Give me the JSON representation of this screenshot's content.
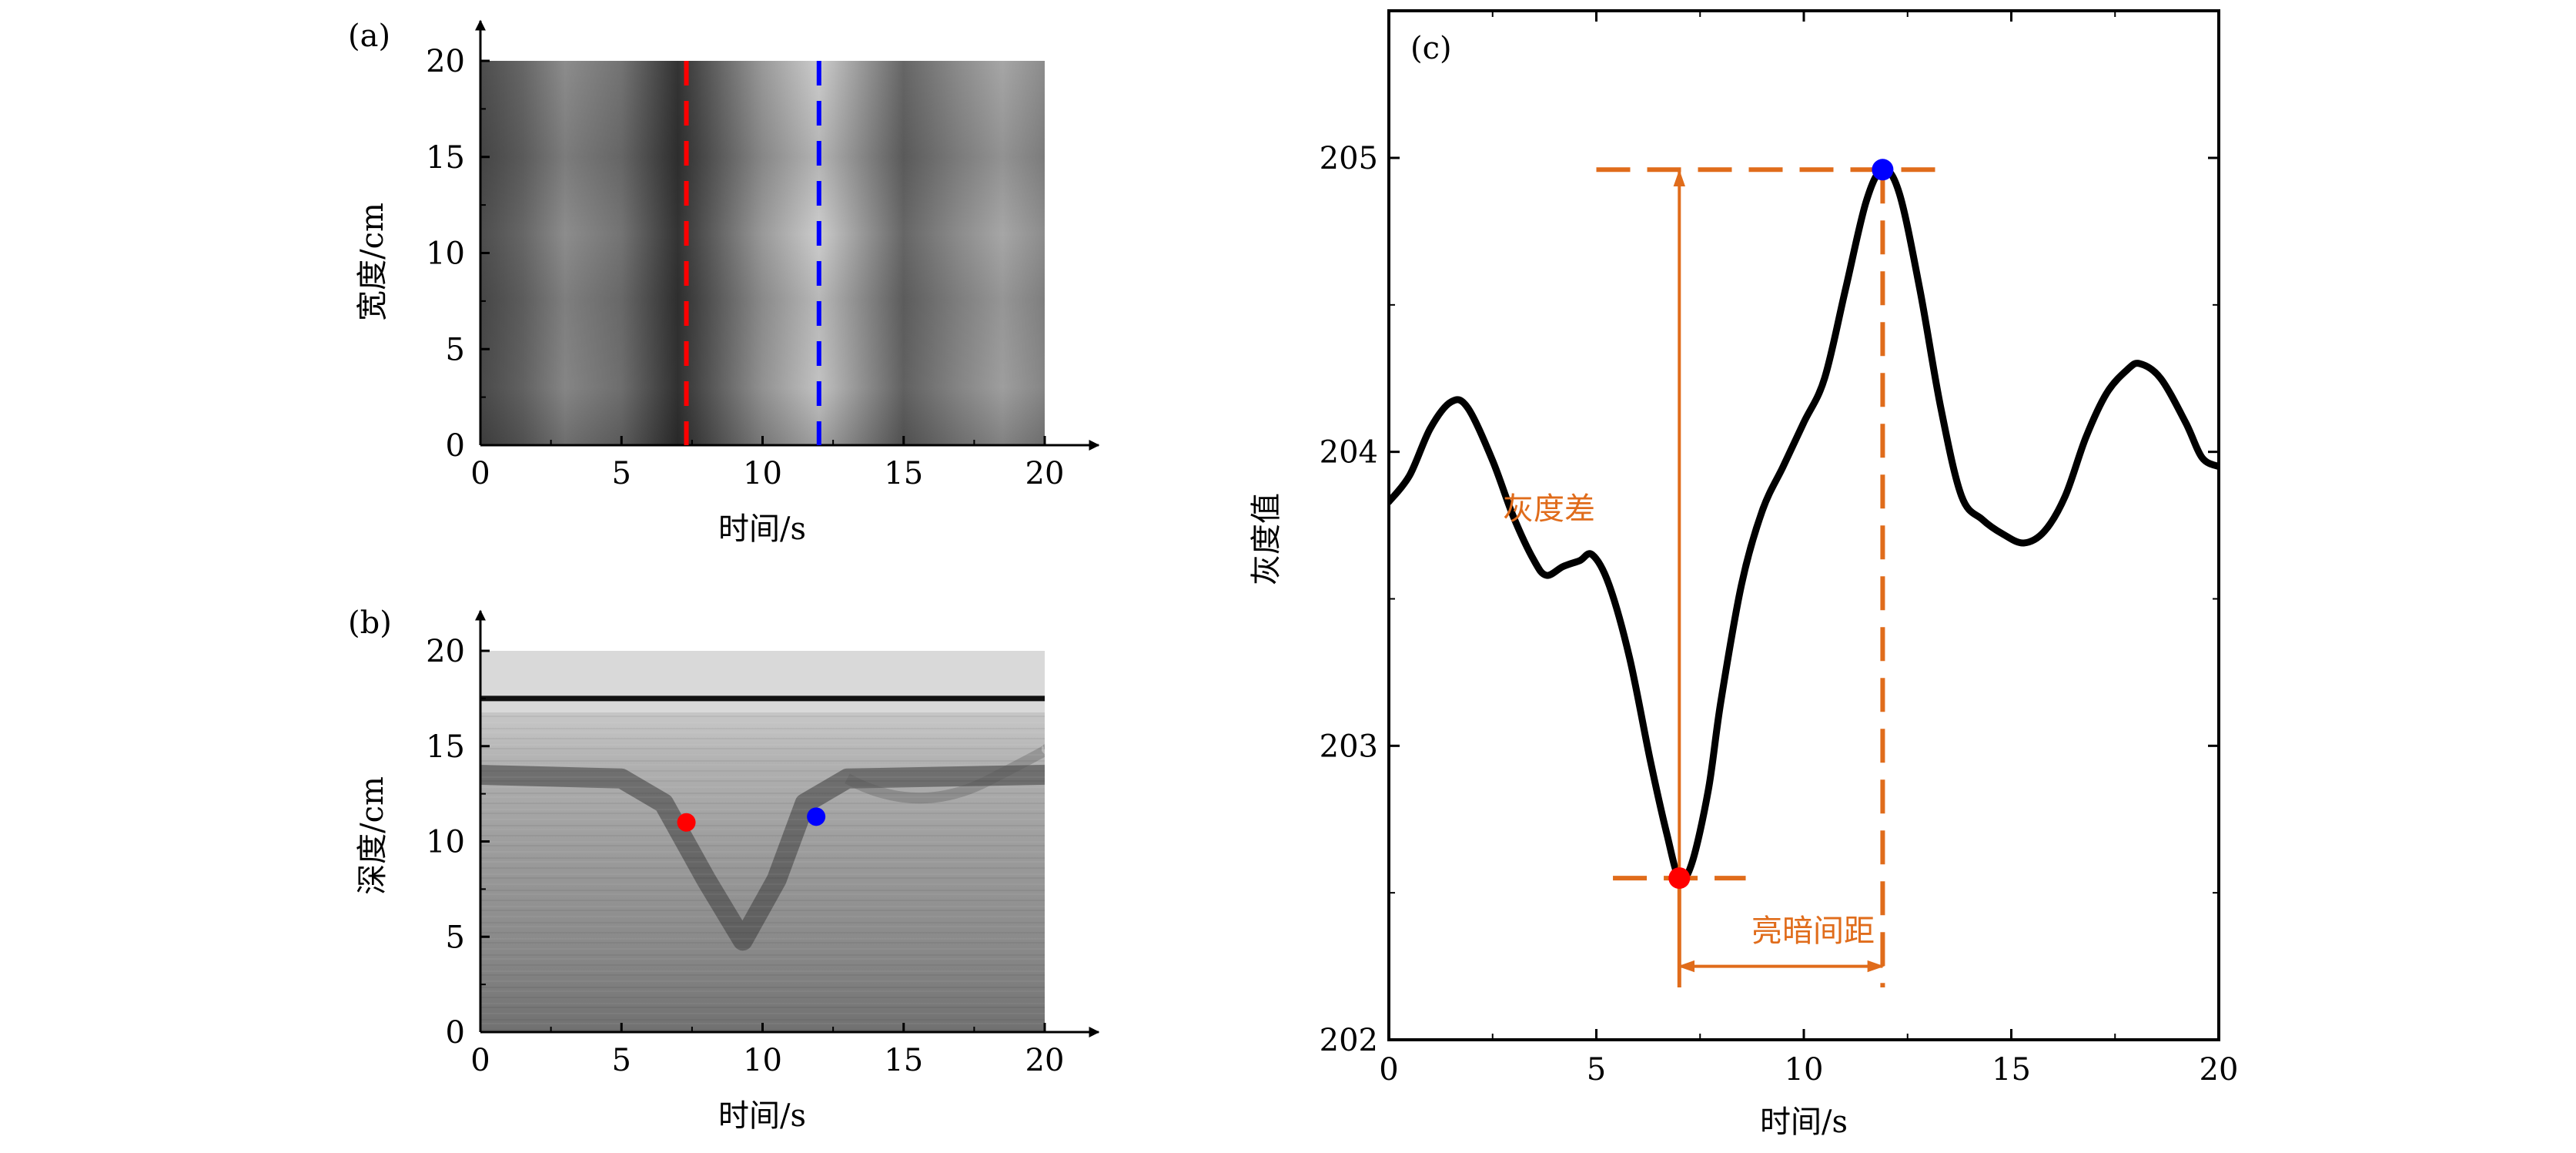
{
  "colors": {
    "axis": "#000000",
    "red_marker": "#ff0000",
    "blue_marker": "#0000ff",
    "annotation": "#e06c1b",
    "curve": "#000000"
  },
  "chart_data": [
    {
      "panel": "(a)",
      "type": "heatmap",
      "xlabel": "时间/s",
      "ylabel": "宽度/cm",
      "xlim": [
        0,
        20
      ],
      "ylim": [
        0,
        20
      ],
      "xticks": [
        0,
        5,
        10,
        15,
        20
      ],
      "yticks": [
        0,
        5,
        10,
        15,
        20
      ],
      "colormap": "grayscale",
      "bands": [
        {
          "t": 0,
          "level": 0.3
        },
        {
          "t": 1.5,
          "level": 0.4
        },
        {
          "t": 3,
          "level": 0.55
        },
        {
          "t": 5,
          "level": 0.45
        },
        {
          "t": 7,
          "level": 0.2
        },
        {
          "t": 8.5,
          "level": 0.4
        },
        {
          "t": 10,
          "level": 0.6
        },
        {
          "t": 12,
          "level": 0.8
        },
        {
          "t": 13.5,
          "level": 0.6
        },
        {
          "t": 15,
          "level": 0.4
        },
        {
          "t": 17,
          "level": 0.55
        },
        {
          "t": 18.5,
          "level": 0.65
        },
        {
          "t": 20,
          "level": 0.55
        }
      ],
      "markers": [
        {
          "type": "vline",
          "x": 7.3,
          "color": "red",
          "style": "dashed"
        },
        {
          "type": "vline",
          "x": 12.0,
          "color": "blue",
          "style": "dashed"
        }
      ]
    },
    {
      "panel": "(b)",
      "type": "heatmap",
      "xlabel": "时间/s",
      "ylabel": "深度/cm",
      "xlim": [
        0,
        20
      ],
      "ylim": [
        0,
        20
      ],
      "xticks": [
        0,
        5,
        10,
        15,
        20
      ],
      "yticks": [
        0,
        5,
        10,
        15,
        20
      ],
      "colormap": "grayscale",
      "surface_line_depth": 17.5,
      "v_trough": [
        {
          "t": 0,
          "d": 13.5
        },
        {
          "t": 5,
          "d": 13.3
        },
        {
          "t": 6.5,
          "d": 12.0
        },
        {
          "t": 8,
          "d": 8.0
        },
        {
          "t": 9.3,
          "d": 4.8
        },
        {
          "t": 10.5,
          "d": 8.0
        },
        {
          "t": 11.5,
          "d": 12.0
        },
        {
          "t": 13,
          "d": 13.3
        },
        {
          "t": 20,
          "d": 13.5
        }
      ],
      "points": [
        {
          "x": 7.3,
          "y": 11.0,
          "color": "red"
        },
        {
          "x": 11.9,
          "y": 11.3,
          "color": "blue"
        }
      ]
    },
    {
      "panel": "(c)",
      "type": "line",
      "xlabel": "时间/s",
      "ylabel": "灰度值",
      "xlim": [
        0,
        20
      ],
      "ylim": [
        202,
        205.5
      ],
      "xticks": [
        0,
        5,
        10,
        15,
        20
      ],
      "yticks": [
        202,
        203,
        204,
        205
      ],
      "series": [
        {
          "x": [
            0,
            0.5,
            1.0,
            1.5,
            1.9,
            2.5,
            3.0,
            3.5,
            3.8,
            4.2,
            4.6,
            4.9,
            5.3,
            5.8,
            6.3,
            6.7,
            7.0,
            7.3,
            7.7,
            8.0,
            8.5,
            9.0,
            9.5,
            10.0,
            10.5,
            11.0,
            11.5,
            11.9,
            12.3,
            12.8,
            13.3,
            13.8,
            14.3,
            14.8,
            15.3,
            15.8,
            16.3,
            16.8,
            17.3,
            17.8,
            18.1,
            18.6,
            19.2,
            19.6,
            20.0
          ],
          "y": [
            203.83,
            203.92,
            204.08,
            204.17,
            204.15,
            203.97,
            203.78,
            203.63,
            203.58,
            203.61,
            203.63,
            203.65,
            203.55,
            203.3,
            202.95,
            202.7,
            202.55,
            202.6,
            202.85,
            203.15,
            203.55,
            203.8,
            203.95,
            204.1,
            204.25,
            204.55,
            204.85,
            204.96,
            204.88,
            204.55,
            204.15,
            203.85,
            203.77,
            203.72,
            203.69,
            203.73,
            203.85,
            204.05,
            204.2,
            204.28,
            204.3,
            204.25,
            204.1,
            203.98,
            203.95
          ]
        }
      ],
      "points": [
        {
          "x": 7.0,
          "y": 202.55,
          "color": "red"
        },
        {
          "x": 11.9,
          "y": 204.96,
          "color": "blue"
        }
      ],
      "annotations": [
        {
          "text": "灰度差",
          "type": "vertical-arrow",
          "x": 7.0,
          "y_from": 202.55,
          "y_to": 204.97
        },
        {
          "text": "亮暗间距",
          "type": "horizontal-arrow",
          "y": 202.25,
          "x_from": 7.0,
          "x_to": 11.9
        }
      ]
    }
  ]
}
